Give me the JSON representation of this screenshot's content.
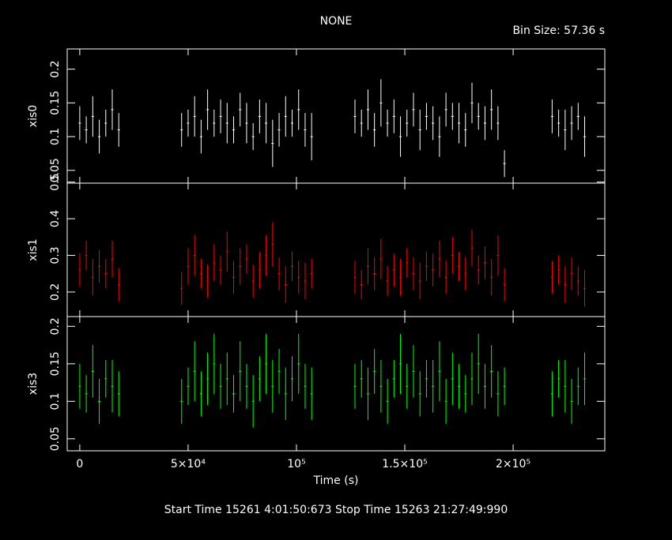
{
  "title": "NONE",
  "bin_size": "Bin Size: 57.36 s",
  "footer": "Start Time 15261  4:01:50:673    Stop Time 15263 21:27:49:990",
  "chart_data": [
    {
      "type": "errorbar",
      "ylabel": "xis0",
      "color": "#ffffff",
      "xlim": [
        -5800,
        242300
      ],
      "ylim": [
        0.031,
        0.23
      ],
      "xticks": [
        0,
        50000,
        100000,
        150000,
        200000
      ],
      "yticks": [
        0.05,
        0.1,
        0.15,
        0.2
      ],
      "x": [
        0,
        3000,
        6000,
        9000,
        12000,
        15000,
        18000,
        47000,
        50000,
        53000,
        56000,
        59000,
        62000,
        65000,
        68000,
        71000,
        74000,
        77000,
        80000,
        83000,
        86000,
        89000,
        92000,
        95000,
        98000,
        101000,
        104000,
        107000,
        127000,
        130000,
        133000,
        136000,
        139000,
        142000,
        145000,
        148000,
        151000,
        154000,
        157000,
        160000,
        163000,
        166000,
        169000,
        172000,
        175000,
        178000,
        181000,
        184000,
        187000,
        190000,
        193000,
        196000,
        218000,
        221000,
        224000,
        227000,
        230000,
        233000
      ],
      "values": [
        0.12,
        0.11,
        0.13,
        0.1,
        0.12,
        0.14,
        0.11,
        0.11,
        0.12,
        0.13,
        0.1,
        0.14,
        0.12,
        0.13,
        0.12,
        0.11,
        0.14,
        0.12,
        0.1,
        0.13,
        0.12,
        0.09,
        0.11,
        0.13,
        0.12,
        0.14,
        0.11,
        0.1,
        0.13,
        0.12,
        0.14,
        0.11,
        0.15,
        0.12,
        0.13,
        0.1,
        0.12,
        0.14,
        0.11,
        0.13,
        0.12,
        0.1,
        0.14,
        0.13,
        0.12,
        0.11,
        0.15,
        0.13,
        0.12,
        0.14,
        0.12,
        0.06,
        0.13,
        0.12,
        0.11,
        0.12,
        0.13,
        0.1
      ],
      "errors": [
        0.025,
        0.02,
        0.03,
        0.025,
        0.02,
        0.03,
        0.025,
        0.025,
        0.02,
        0.03,
        0.025,
        0.03,
        0.02,
        0.025,
        0.03,
        0.02,
        0.025,
        0.03,
        0.02,
        0.025,
        0.03,
        0.035,
        0.025,
        0.03,
        0.02,
        0.03,
        0.025,
        0.035,
        0.025,
        0.02,
        0.03,
        0.025,
        0.035,
        0.02,
        0.025,
        0.03,
        0.02,
        0.025,
        0.03,
        0.02,
        0.025,
        0.03,
        0.025,
        0.02,
        0.03,
        0.025,
        0.03,
        0.02,
        0.025,
        0.03,
        0.025,
        0.02,
        0.025,
        0.02,
        0.03,
        0.025,
        0.02,
        0.03
      ]
    },
    {
      "type": "errorbar",
      "ylabel": "xis1",
      "color": "#ff0000",
      "xlim": [
        -5800,
        242300
      ],
      "ylim": [
        0.133,
        0.497
      ],
      "xticks": [
        0,
        50000,
        100000,
        150000,
        200000
      ],
      "yticks": [
        0.2,
        0.3,
        0.4,
        0.5
      ],
      "x": [
        0,
        3000,
        6000,
        9000,
        12000,
        15000,
        18000,
        47000,
        50000,
        53000,
        56000,
        59000,
        62000,
        65000,
        68000,
        71000,
        74000,
        77000,
        80000,
        83000,
        86000,
        89000,
        92000,
        95000,
        98000,
        101000,
        104000,
        107000,
        127000,
        130000,
        133000,
        136000,
        139000,
        142000,
        145000,
        148000,
        151000,
        154000,
        157000,
        160000,
        163000,
        166000,
        169000,
        172000,
        175000,
        178000,
        181000,
        184000,
        187000,
        190000,
        193000,
        196000,
        218000,
        221000,
        224000,
        227000,
        230000,
        233000
      ],
      "values": [
        0.26,
        0.3,
        0.24,
        0.27,
        0.25,
        0.29,
        0.22,
        0.21,
        0.27,
        0.3,
        0.25,
        0.23,
        0.28,
        0.26,
        0.31,
        0.24,
        0.27,
        0.29,
        0.23,
        0.26,
        0.3,
        0.33,
        0.25,
        0.22,
        0.27,
        0.24,
        0.23,
        0.25,
        0.24,
        0.22,
        0.27,
        0.25,
        0.29,
        0.23,
        0.26,
        0.24,
        0.28,
        0.25,
        0.23,
        0.27,
        0.26,
        0.29,
        0.24,
        0.3,
        0.27,
        0.25,
        0.32,
        0.26,
        0.28,
        0.24,
        0.3,
        0.22,
        0.24,
        0.26,
        0.22,
        0.25,
        0.23,
        0.21
      ],
      "errors": [
        0.045,
        0.04,
        0.05,
        0.045,
        0.04,
        0.05,
        0.045,
        0.045,
        0.05,
        0.055,
        0.04,
        0.045,
        0.05,
        0.04,
        0.055,
        0.045,
        0.05,
        0.04,
        0.045,
        0.05,
        0.055,
        0.06,
        0.045,
        0.05,
        0.04,
        0.045,
        0.05,
        0.04,
        0.045,
        0.04,
        0.05,
        0.045,
        0.055,
        0.04,
        0.045,
        0.05,
        0.04,
        0.045,
        0.05,
        0.04,
        0.045,
        0.05,
        0.045,
        0.05,
        0.04,
        0.045,
        0.05,
        0.04,
        0.045,
        0.05,
        0.055,
        0.045,
        0.045,
        0.04,
        0.05,
        0.045,
        0.04,
        0.05
      ]
    },
    {
      "type": "errorbar",
      "ylabel": "xis3",
      "xlabel": "Time (s)",
      "color": "#00ff00",
      "xlim": [
        -5800,
        242300
      ],
      "ylim": [
        0.034,
        0.213
      ],
      "xticks": [
        0,
        {
          "value": 50000,
          "label": "5×10⁴"
        },
        {
          "value": 100000,
          "label": "10⁵"
        },
        {
          "value": 150000,
          "label": "1.5×10⁵"
        },
        {
          "value": 200000,
          "label": "2×10⁵"
        }
      ],
      "yticks": [
        0.05,
        0.1,
        0.15,
        0.2
      ],
      "x": [
        0,
        3000,
        6000,
        9000,
        12000,
        15000,
        18000,
        47000,
        50000,
        53000,
        56000,
        59000,
        62000,
        65000,
        68000,
        71000,
        74000,
        77000,
        80000,
        83000,
        86000,
        89000,
        92000,
        95000,
        98000,
        101000,
        104000,
        107000,
        127000,
        130000,
        133000,
        136000,
        139000,
        142000,
        145000,
        148000,
        151000,
        154000,
        157000,
        160000,
        163000,
        166000,
        169000,
        172000,
        175000,
        178000,
        181000,
        184000,
        187000,
        190000,
        193000,
        196000,
        218000,
        221000,
        224000,
        227000,
        230000,
        233000
      ],
      "values": [
        0.12,
        0.11,
        0.14,
        0.1,
        0.13,
        0.12,
        0.11,
        0.1,
        0.12,
        0.14,
        0.11,
        0.13,
        0.15,
        0.12,
        0.13,
        0.11,
        0.14,
        0.12,
        0.1,
        0.13,
        0.15,
        0.12,
        0.14,
        0.11,
        0.13,
        0.15,
        0.12,
        0.11,
        0.12,
        0.13,
        0.11,
        0.14,
        0.12,
        0.1,
        0.13,
        0.15,
        0.12,
        0.14,
        0.11,
        0.13,
        0.12,
        0.14,
        0.1,
        0.13,
        0.12,
        0.11,
        0.13,
        0.15,
        0.12,
        0.14,
        0.11,
        0.12,
        0.11,
        0.13,
        0.12,
        0.1,
        0.12,
        0.13
      ],
      "errors": [
        0.03,
        0.025,
        0.035,
        0.03,
        0.025,
        0.035,
        0.03,
        0.03,
        0.025,
        0.04,
        0.03,
        0.035,
        0.04,
        0.03,
        0.035,
        0.025,
        0.04,
        0.03,
        0.035,
        0.03,
        0.04,
        0.035,
        0.03,
        0.035,
        0.03,
        0.04,
        0.03,
        0.035,
        0.03,
        0.025,
        0.035,
        0.03,
        0.035,
        0.03,
        0.025,
        0.04,
        0.03,
        0.035,
        0.03,
        0.025,
        0.035,
        0.04,
        0.03,
        0.035,
        0.03,
        0.025,
        0.035,
        0.04,
        0.03,
        0.035,
        0.03,
        0.025,
        0.03,
        0.025,
        0.035,
        0.03,
        0.025,
        0.035
      ]
    }
  ]
}
